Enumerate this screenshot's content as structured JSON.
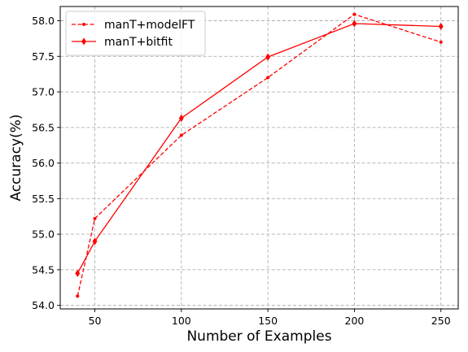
{
  "chart_data": {
    "type": "line",
    "title": "",
    "xlabel": "Number of Examples",
    "ylabel": "Accuracy(%)",
    "xlim": [
      30,
      260
    ],
    "ylim": [
      53.95,
      58.2
    ],
    "xticks": [
      50,
      100,
      150,
      200,
      250
    ],
    "xtick_labels": [
      "50",
      "100",
      "150",
      "200",
      "250"
    ],
    "yticks": [
      54.0,
      54.5,
      55.0,
      55.5,
      56.0,
      56.5,
      57.0,
      57.5,
      58.0
    ],
    "ytick_labels": [
      "54.0",
      "54.5",
      "55.0",
      "55.5",
      "56.0",
      "56.5",
      "57.0",
      "57.5",
      "58.0"
    ],
    "grid": true,
    "legend_position": "top-left",
    "series": [
      {
        "name": "manT+modelFT",
        "color": "#ff0000",
        "line_style": "dashed",
        "marker": "dot",
        "x": [
          40,
          50,
          100,
          150,
          200,
          250
        ],
        "y": [
          54.13,
          55.22,
          56.39,
          57.2,
          58.09,
          57.7
        ]
      },
      {
        "name": "manT+bitfit",
        "color": "#ff0000",
        "line_style": "solid",
        "marker": "thin-diamond",
        "x": [
          40,
          50,
          100,
          150,
          200,
          250
        ],
        "y": [
          54.45,
          54.9,
          56.63,
          57.49,
          57.96,
          57.92
        ]
      }
    ]
  }
}
